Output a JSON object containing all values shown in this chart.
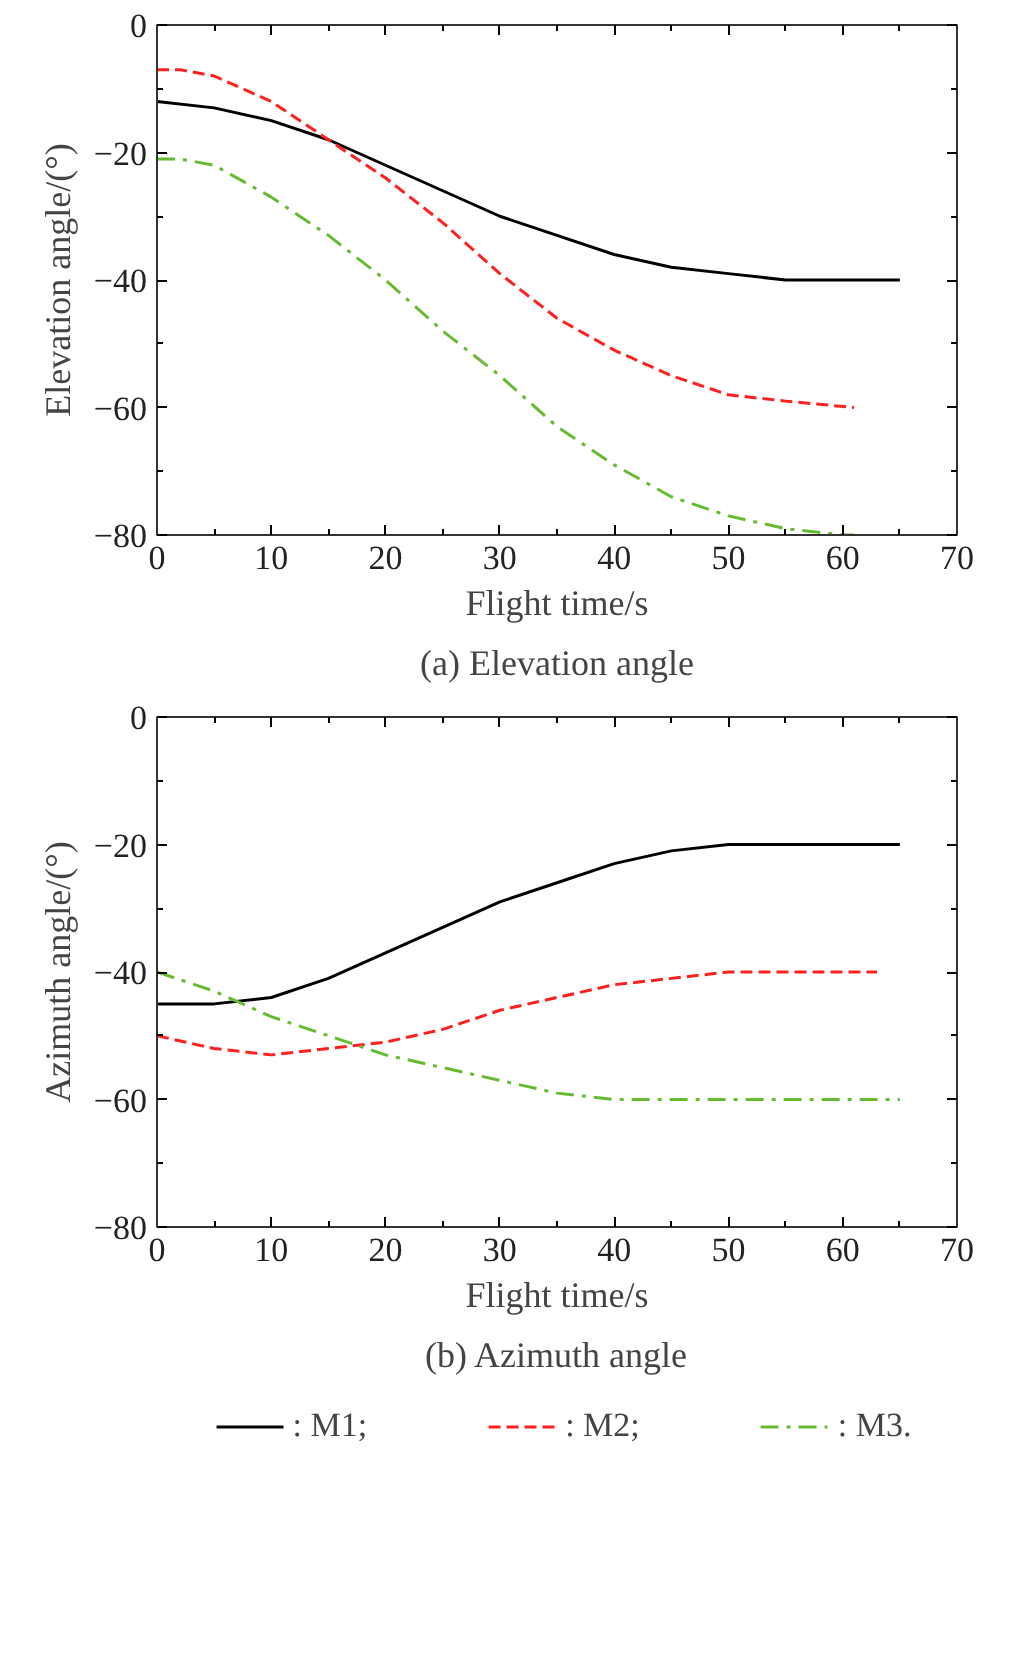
{
  "chart_data": [
    {
      "type": "line",
      "title": "(a) Elevation angle",
      "xlabel": "Flight time/s",
      "ylabel": "Elevation angle/(°)",
      "xlim": [
        0,
        70
      ],
      "ylim": [
        -80,
        0
      ],
      "xticks": [
        0,
        10,
        20,
        30,
        40,
        50,
        60,
        70
      ],
      "yticks": [
        -80,
        -60,
        -40,
        -20,
        0
      ],
      "grid": false,
      "series": [
        {
          "color": "#000000",
          "line_style": "solid",
          "x": [
            0,
            5,
            10,
            15,
            20,
            25,
            30,
            35,
            40,
            45,
            50,
            55,
            60,
            65
          ],
          "values": [
            -12,
            -13,
            -15,
            -18,
            -22,
            -26,
            -30,
            -33,
            -36,
            -38,
            -39,
            -40,
            -40,
            -40
          ]
        },
        {
          "color": "#ff2020",
          "line_style": "dashed",
          "x": [
            0,
            2,
            5,
            10,
            15,
            20,
            25,
            30,
            35,
            40,
            45,
            50,
            55,
            61
          ],
          "values": [
            -7,
            -7,
            -8,
            -12,
            -18,
            -24,
            -31,
            -39,
            -46,
            -51,
            -55,
            -58,
            -59,
            -60
          ]
        },
        {
          "color": "#66bb33",
          "line_style": "dashdot",
          "x": [
            0,
            2,
            5,
            10,
            15,
            20,
            25,
            30,
            35,
            40,
            45,
            50,
            55,
            60,
            61
          ],
          "values": [
            -21,
            -21,
            -22,
            -27,
            -33,
            -40,
            -48,
            -55,
            -63,
            -69,
            -74,
            -77,
            -79,
            -80,
            -80
          ]
        }
      ]
    },
    {
      "type": "line",
      "title": "(b) Azimuth angle",
      "xlabel": "Flight time/s",
      "ylabel": "Azimuth angle/(°)",
      "xlim": [
        0,
        70
      ],
      "ylim": [
        -80,
        0
      ],
      "xticks": [
        0,
        10,
        20,
        30,
        40,
        50,
        60,
        70
      ],
      "yticks": [
        -80,
        -60,
        -40,
        -20,
        0
      ],
      "grid": false,
      "legend": "bottom",
      "series": [
        {
          "name": ": M1;",
          "color": "#000000",
          "line_style": "solid",
          "x": [
            0,
            5,
            10,
            15,
            20,
            25,
            30,
            35,
            40,
            45,
            50,
            55,
            60,
            65
          ],
          "values": [
            -45,
            -45,
            -44,
            -41,
            -37,
            -33,
            -29,
            -26,
            -23,
            -21,
            -20,
            -20,
            -20,
            -20
          ]
        },
        {
          "name": ": M2;",
          "color": "#ff2020",
          "line_style": "dashed",
          "x": [
            0,
            5,
            10,
            15,
            20,
            25,
            30,
            35,
            40,
            45,
            50,
            55,
            63
          ],
          "values": [
            -50,
            -52,
            -53,
            -52,
            -51,
            -49,
            -46,
            -44,
            -42,
            -41,
            -40,
            -40,
            -40
          ]
        },
        {
          "name": ": M3.",
          "color": "#66bb33",
          "line_style": "dashdot",
          "x": [
            0,
            5,
            10,
            15,
            20,
            25,
            30,
            35,
            40,
            45,
            55,
            65
          ],
          "values": [
            -40,
            -43,
            -47,
            -50,
            -53,
            -55,
            -57,
            -59,
            -60,
            -60,
            -60,
            -60
          ]
        }
      ]
    }
  ]
}
